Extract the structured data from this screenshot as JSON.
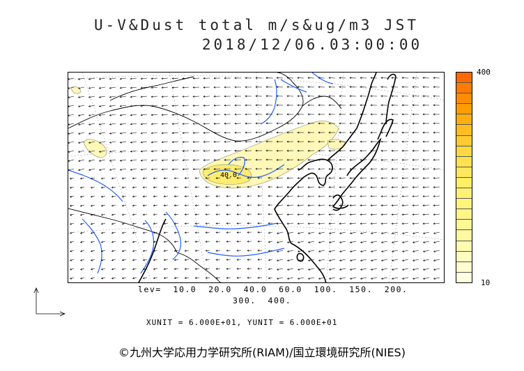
{
  "header": {
    "title_line1": "U-V&Dust total m/s&ug/m3 JST",
    "title_line2": "2018/12/06.03:00:00"
  },
  "colorbar": {
    "max_label": "400",
    "min_label": "10",
    "colors": [
      "#ff6a00",
      "#ff7a00",
      "#ff8c00",
      "#ff9e00",
      "#ffae10",
      "#ffbe20",
      "#ffcc30",
      "#ffd840",
      "#ffe24c",
      "#ffe95a",
      "#ffef66",
      "#fff272",
      "#fff47c",
      "#fff688",
      "#fff894",
      "#fffaa2",
      "#fffbb0",
      "#fffcc0",
      "#fffdd0",
      "#fffee0"
    ]
  },
  "levels": {
    "line1": "lev=  10.0  20.0  40.0  60.0  100.  150.  200.",
    "line2": "300.  400."
  },
  "units_line": "XUNIT = 6.000E+01, YUNIT = 6.000E+01",
  "copyright": "©九州大学応用力学研究所(RIAM)/国立環境研究所(NIES)",
  "map": {
    "contour_label": "40.0",
    "colors": {
      "river": "#1f5fff",
      "coast": "#000000",
      "dust_light": "#fff4a6",
      "dust_mid": "#ffe460",
      "wind": "#000000"
    }
  },
  "legend_icon": "axes-arrows-icon"
}
